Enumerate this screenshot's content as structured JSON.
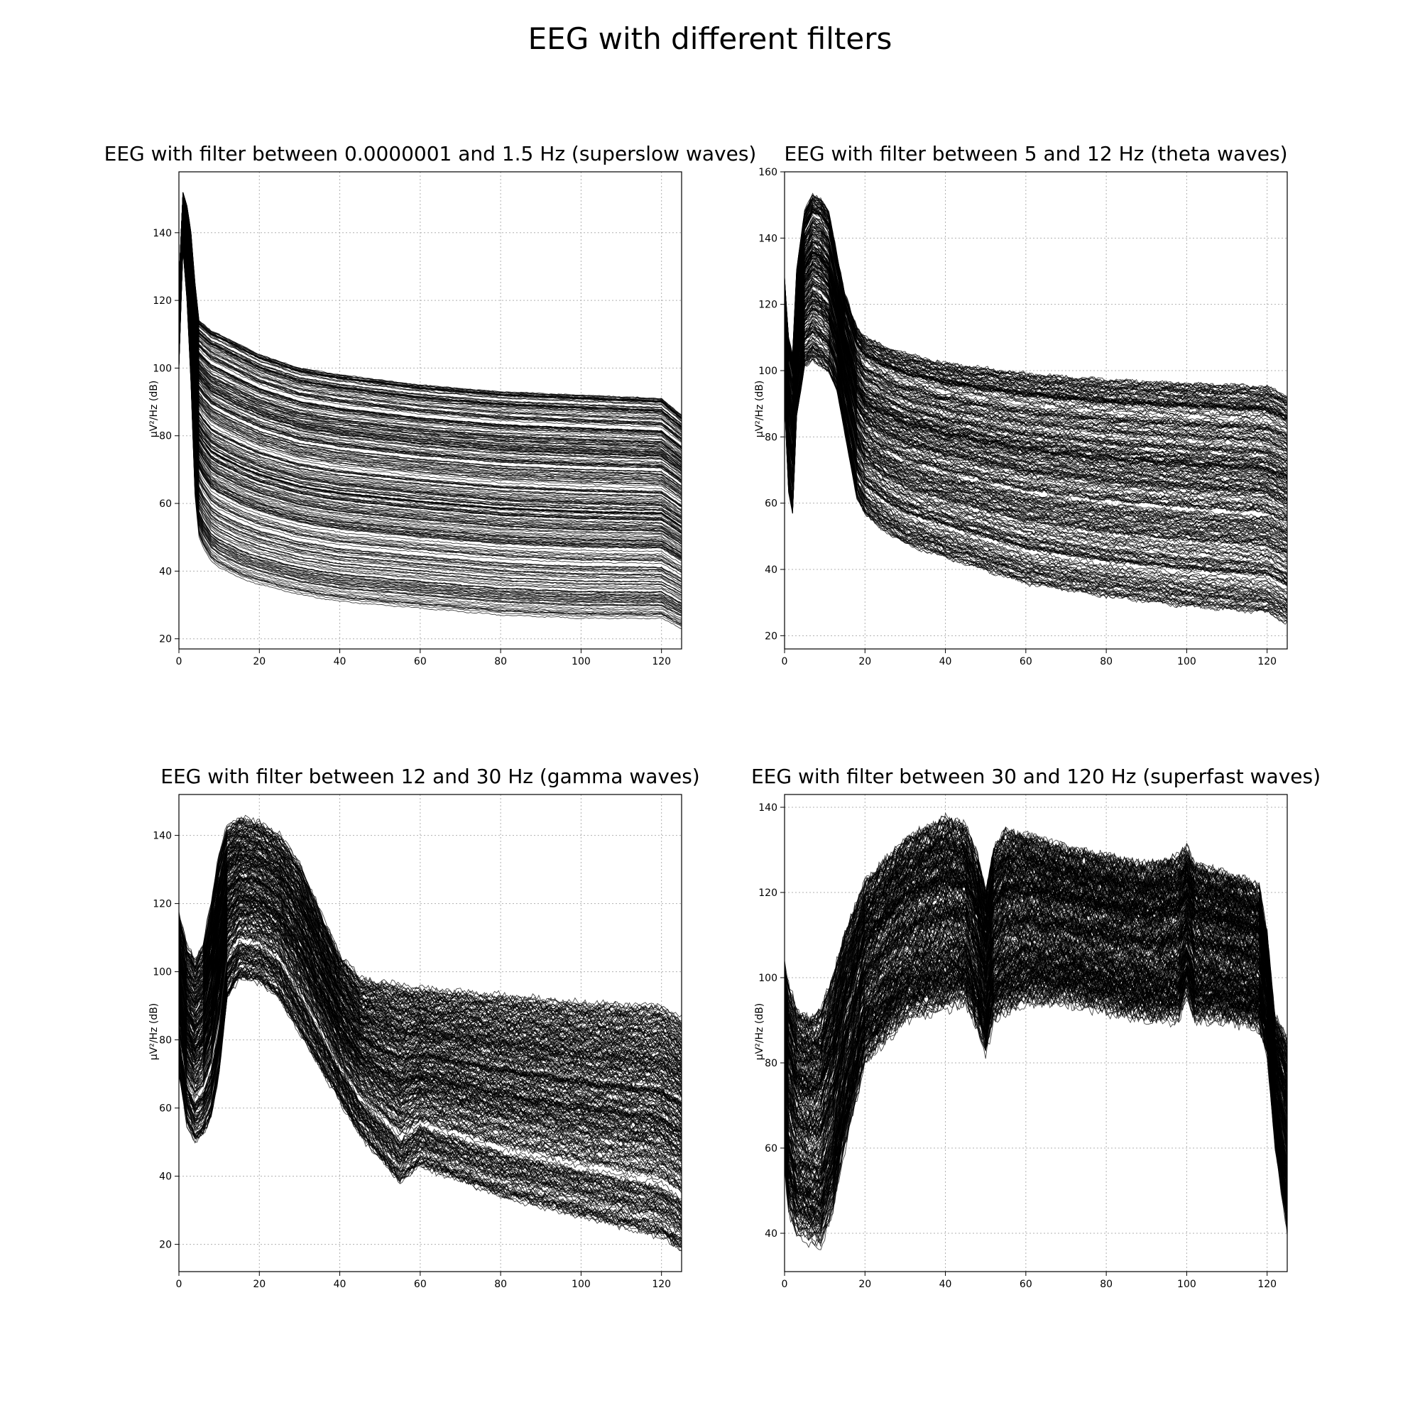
{
  "figure": {
    "title": "EEG with different filters"
  },
  "chart_data": [
    {
      "type": "line",
      "title": "EEG with filter between 0.0000001 and 1.5 Hz (superslow waves)",
      "xlabel": "",
      "ylabel": "µV²/Hz (dB)",
      "xlim": [
        0,
        125
      ],
      "ylim": [
        17,
        158
      ],
      "xticks": [
        0,
        20,
        40,
        60,
        80,
        100,
        120
      ],
      "yticks": [
        20,
        40,
        60,
        80,
        100,
        120,
        140
      ],
      "grid": true,
      "line_color": "#000000",
      "n_channels": 300,
      "profile": {
        "x": [
          0,
          1,
          2,
          3,
          4,
          5,
          6,
          8,
          10,
          15,
          20,
          30,
          40,
          60,
          80,
          100,
          120,
          125
        ],
        "y_min": [
          100,
          135,
          120,
          95,
          62,
          50,
          47,
          43,
          41,
          38,
          36,
          33,
          31,
          29,
          27,
          26,
          26,
          23
        ],
        "y_max": [
          125,
          152,
          148,
          140,
          125,
          114,
          113,
          111,
          110,
          107,
          104,
          100,
          98,
          95,
          93,
          92,
          91,
          86
        ]
      }
    },
    {
      "type": "line",
      "title": "EEG with filter between 5 and 12 Hz (theta waves)",
      "xlabel": "",
      "ylabel": "µV²/Hz (dB)",
      "xlim": [
        0,
        125
      ],
      "ylim": [
        16,
        160
      ],
      "xticks": [
        0,
        20,
        40,
        60,
        80,
        100,
        120
      ],
      "yticks": [
        20,
        40,
        60,
        80,
        100,
        120,
        140,
        160
      ],
      "grid": true,
      "line_color": "#000000",
      "n_channels": 300,
      "profile": {
        "x": [
          0,
          1,
          2,
          3,
          5,
          7,
          9,
          11,
          13,
          15,
          18,
          20,
          25,
          30,
          40,
          60,
          80,
          100,
          120,
          125
        ],
        "y_min": [
          90,
          62,
          55,
          85,
          100,
          102,
          100,
          98,
          93,
          80,
          60,
          55,
          50,
          46,
          42,
          34,
          30,
          27,
          25,
          22
        ],
        "y_max": [
          128,
          110,
          105,
          130,
          148,
          153,
          152,
          148,
          135,
          123,
          113,
          110,
          107,
          105,
          102,
          99,
          97,
          96,
          95,
          92
        ]
      }
    },
    {
      "type": "line",
      "title": "EEG with filter between 12 and 30 Hz (gamma waves)",
      "xlabel": "",
      "ylabel": "µV²/Hz (dB)",
      "xlim": [
        0,
        125
      ],
      "ylim": [
        12,
        152
      ],
      "xticks": [
        0,
        20,
        40,
        60,
        80,
        100,
        120
      ],
      "yticks": [
        20,
        40,
        60,
        80,
        100,
        120,
        140
      ],
      "grid": true,
      "line_color": "#000000",
      "n_channels": 300,
      "profile": {
        "x": [
          0,
          2,
          4,
          6,
          8,
          10,
          12,
          15,
          20,
          25,
          30,
          35,
          40,
          45,
          50,
          55,
          60,
          80,
          100,
          120,
          125
        ],
        "y_min": [
          70,
          55,
          50,
          52,
          57,
          70,
          92,
          98,
          97,
          92,
          82,
          72,
          62,
          52,
          45,
          38,
          43,
          34,
          28,
          22,
          18
        ],
        "y_max": [
          117,
          108,
          104,
          108,
          120,
          135,
          143,
          145,
          144,
          140,
          132,
          118,
          105,
          98,
          97,
          96,
          95,
          93,
          91,
          90,
          86
        ]
      }
    },
    {
      "type": "line",
      "title": "EEG with filter between 30 and 120 Hz (superfast waves)",
      "xlabel": "",
      "ylabel": "µV²/Hz (dB)",
      "xlim": [
        0,
        125
      ],
      "ylim": [
        31,
        143
      ],
      "xticks": [
        0,
        20,
        40,
        60,
        80,
        100,
        120
      ],
      "yticks": [
        40,
        60,
        80,
        100,
        120,
        140
      ],
      "grid": true,
      "line_color": "#000000",
      "n_channels": 300,
      "profile": {
        "x": [
          0,
          1,
          3,
          6,
          9,
          12,
          15,
          20,
          30,
          40,
          45,
          48,
          50,
          52,
          55,
          60,
          70,
          80,
          90,
          98,
          100,
          102,
          110,
          118,
          120,
          122,
          125
        ],
        "y_min": [
          55,
          45,
          40,
          38,
          37,
          45,
          60,
          80,
          90,
          93,
          94,
          88,
          82,
          90,
          92,
          94,
          94,
          92,
          90,
          90,
          96,
          90,
          90,
          88,
          82,
          60,
          40
        ],
        "y_max": [
          103,
          98,
          92,
          90,
          92,
          100,
          110,
          122,
          132,
          137,
          135,
          128,
          120,
          130,
          134,
          133,
          130,
          128,
          126,
          128,
          130,
          126,
          124,
          121,
          110,
          90,
          85
        ]
      }
    }
  ]
}
